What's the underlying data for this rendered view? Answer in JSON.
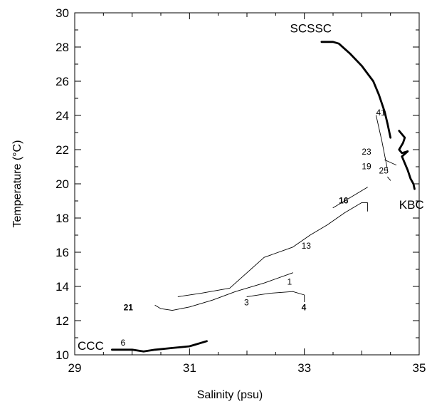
{
  "chart_data": {
    "type": "line",
    "title": "",
    "xlabel": "Salinity (psu)",
    "ylabel": "Temperature (°C)",
    "xlim": [
      29,
      35
    ],
    "ylim": [
      10,
      30
    ],
    "x_ticks": [
      29,
      31,
      33,
      35
    ],
    "y_ticks": [
      10,
      12,
      14,
      16,
      18,
      20,
      22,
      24,
      26,
      28,
      30
    ],
    "grid": false,
    "series": [
      {
        "style": "thick",
        "x": [
          33.3,
          33.5,
          33.6,
          33.8,
          34.0,
          34.2,
          34.3,
          34.4,
          34.45,
          34.5
        ],
        "y": [
          28.3,
          28.3,
          28.2,
          27.6,
          26.9,
          26.0,
          25.2,
          24.2,
          23.5,
          22.7
        ]
      },
      {
        "style": "thick",
        "x": [
          34.65,
          34.75,
          34.72,
          34.65,
          34.7,
          34.8,
          34.7,
          34.8,
          34.85,
          34.9,
          34.92
        ],
        "y": [
          23.1,
          22.7,
          22.4,
          22.0,
          21.8,
          21.9,
          21.6,
          20.8,
          20.3,
          20.0,
          19.7
        ]
      },
      {
        "style": "thick",
        "x": [
          29.65,
          30.0,
          30.2,
          30.4,
          30.7,
          31.0,
          31.1,
          31.3
        ],
        "y": [
          10.3,
          10.3,
          10.2,
          10.3,
          10.4,
          10.5,
          10.6,
          10.8
        ]
      },
      {
        "style": "thin",
        "x": [
          30.4,
          30.5,
          30.7,
          31.0,
          31.4,
          31.8,
          32.3,
          32.8
        ],
        "y": [
          12.9,
          12.7,
          12.6,
          12.8,
          13.2,
          13.7,
          14.2,
          14.8
        ]
      },
      {
        "style": "thin",
        "x": [
          30.8,
          31.2,
          31.7,
          32.0,
          32.3,
          32.8,
          33.1,
          33.4,
          33.7,
          34.0,
          34.1,
          34.1
        ],
        "y": [
          13.4,
          13.6,
          13.9,
          14.8,
          15.7,
          16.3,
          17.0,
          17.6,
          18.3,
          18.9,
          18.9,
          18.4
        ]
      },
      {
        "style": "thin",
        "x": [
          33.5,
          33.8,
          34.0,
          34.1
        ],
        "y": [
          18.6,
          19.2,
          19.6,
          19.8
        ]
      },
      {
        "style": "thin",
        "x": [
          32.0,
          32.4,
          32.8,
          33.0,
          33.0
        ],
        "y": [
          13.4,
          13.6,
          13.7,
          13.5,
          13.1
        ]
      },
      {
        "style": "thin",
        "x": [
          34.25,
          34.35,
          34.45
        ],
        "y": [
          24.0,
          22.5,
          20.8
        ]
      },
      {
        "style": "thin",
        "x": [
          34.4,
          34.6
        ],
        "y": [
          21.4,
          21.1
        ]
      },
      {
        "style": "thin",
        "x": [
          34.45,
          34.5
        ],
        "y": [
          20.4,
          20.2
        ]
      }
    ],
    "annotations": [
      {
        "text": "SCSSC",
        "x": 32.75,
        "y": 28.85,
        "size": "big"
      },
      {
        "text": "KBC",
        "x": 34.65,
        "y": 18.55,
        "size": "big"
      },
      {
        "text": "CCC",
        "x": 29.05,
        "y": 10.3,
        "size": "big"
      },
      {
        "text": "41",
        "x": 34.25,
        "y": 24.0,
        "size": "small"
      },
      {
        "text": "23",
        "x": 34.0,
        "y": 21.7,
        "size": "small"
      },
      {
        "text": "19",
        "x": 34.0,
        "y": 20.85,
        "size": "small"
      },
      {
        "text": "25",
        "x": 34.3,
        "y": 20.6,
        "size": "small"
      },
      {
        "text": "16",
        "x": 33.6,
        "y": 18.85,
        "size": "bold"
      },
      {
        "text": "13",
        "x": 32.95,
        "y": 16.2,
        "size": "small"
      },
      {
        "text": "1",
        "x": 32.7,
        "y": 14.1,
        "size": "small"
      },
      {
        "text": "3",
        "x": 31.95,
        "y": 12.9,
        "size": "small"
      },
      {
        "text": "4",
        "x": 32.95,
        "y": 12.6,
        "size": "bold"
      },
      {
        "text": "21",
        "x": 29.85,
        "y": 12.6,
        "size": "bold"
      },
      {
        "text": "6",
        "x": 29.8,
        "y": 10.55,
        "size": "small"
      }
    ]
  }
}
